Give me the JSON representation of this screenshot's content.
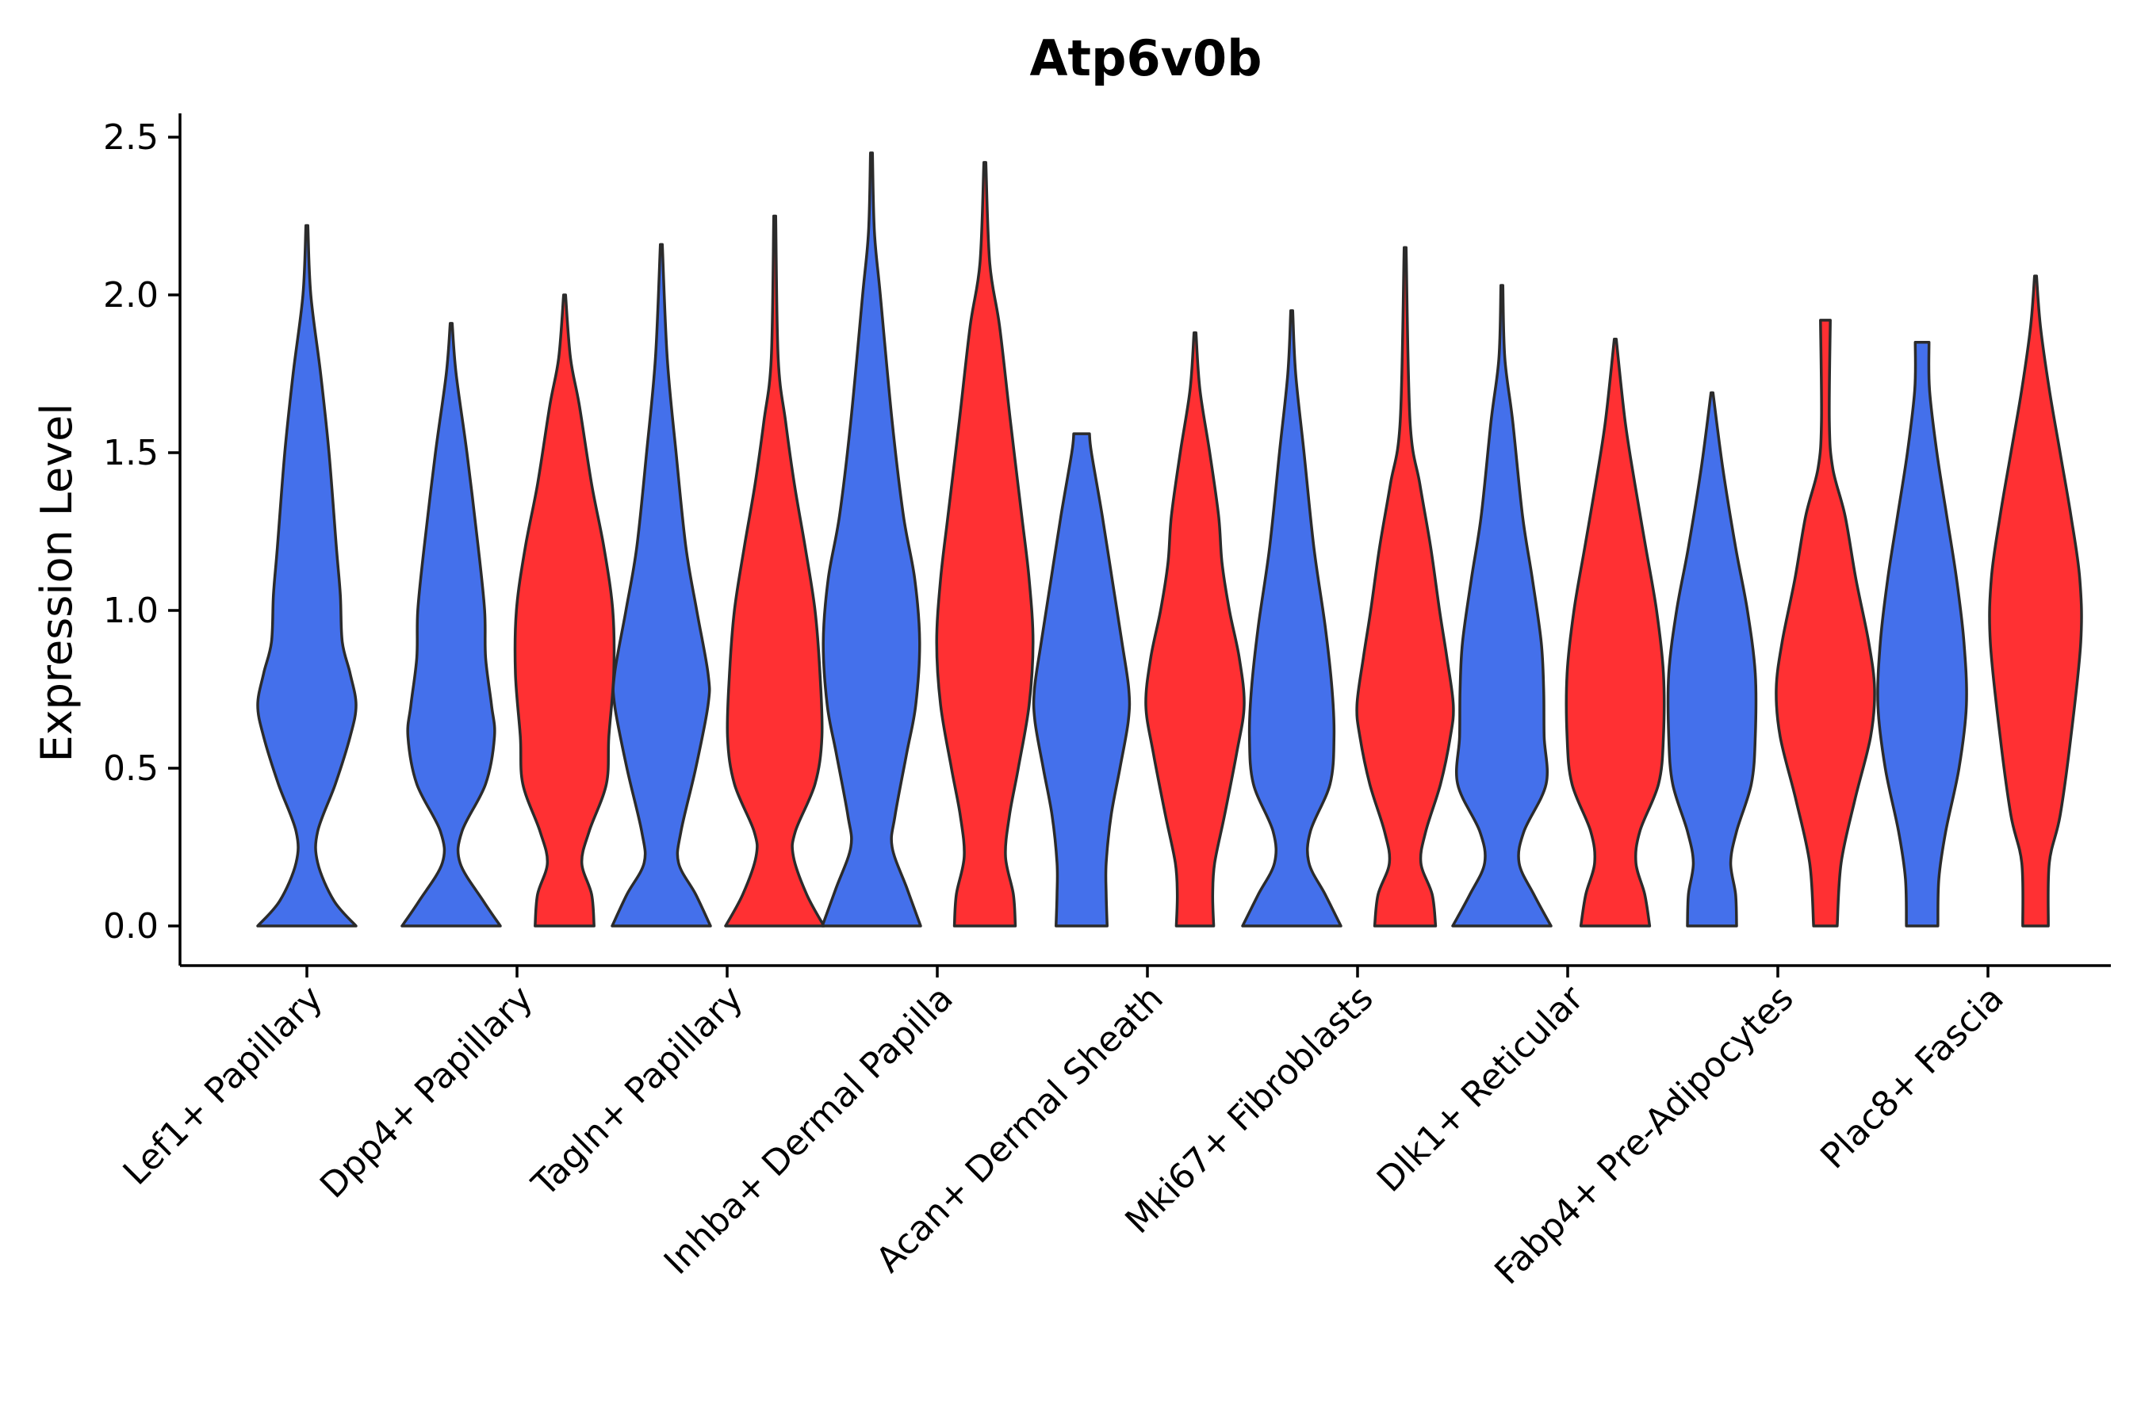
{
  "chart_data": {
    "type": "violin",
    "title": "Atp6v0b",
    "xlabel": "",
    "ylabel": "Expression Level",
    "ylim": [
      -0.12,
      2.58
    ],
    "yticks": [
      0.0,
      0.5,
      1.0,
      1.5,
      2.0,
      2.5
    ],
    "ytick_labels": [
      "0.0",
      "0.5",
      "1.0",
      "1.5",
      "2.0",
      "2.5"
    ],
    "colors": {
      "group1": "#4470EB",
      "group2": "#FF3033"
    },
    "categories": [
      "Lef1+ Papillary",
      "Dpp4+ Papillary",
      "Tagln+ Papillary",
      "Inhba+ Dermal Papilla",
      "Acan+ Dermal Sheath",
      "Mki67+ Fibroblasts",
      "Dlk1+ Reticular",
      "Fabp4+ Pre-Adipocytes",
      "Plac8+ Fascia"
    ],
    "violins": [
      {
        "category": "Lef1+ Papillary",
        "group": "group1",
        "color": "#4470EB",
        "max": 2.22,
        "profile": [
          [
            0.0,
            1.0
          ],
          [
            0.08,
            0.55
          ],
          [
            0.2,
            0.22
          ],
          [
            0.3,
            0.22
          ],
          [
            0.45,
            0.58
          ],
          [
            0.6,
            0.88
          ],
          [
            0.7,
            1.0
          ],
          [
            0.8,
            0.88
          ],
          [
            0.9,
            0.72
          ],
          [
            1.05,
            0.68
          ],
          [
            1.2,
            0.6
          ],
          [
            1.5,
            0.45
          ],
          [
            1.75,
            0.28
          ],
          [
            2.0,
            0.08
          ],
          [
            2.22,
            0.02
          ]
        ]
      },
      {
        "category": "Dpp4+ Papillary",
        "group": "group1",
        "color": "#4470EB",
        "max": 1.91,
        "profile": [
          [
            0.0,
            1.0
          ],
          [
            0.08,
            0.65
          ],
          [
            0.2,
            0.18
          ],
          [
            0.3,
            0.22
          ],
          [
            0.45,
            0.7
          ],
          [
            0.6,
            0.88
          ],
          [
            0.7,
            0.82
          ],
          [
            0.85,
            0.7
          ],
          [
            1.0,
            0.68
          ],
          [
            1.2,
            0.55
          ],
          [
            1.5,
            0.32
          ],
          [
            1.75,
            0.1
          ],
          [
            1.91,
            0.02
          ]
        ]
      },
      {
        "category": "Dpp4+ Papillary",
        "group": "group2",
        "color": "#FF3033",
        "max": 2.0,
        "profile": [
          [
            0.0,
            0.6
          ],
          [
            0.1,
            0.55
          ],
          [
            0.2,
            0.35
          ],
          [
            0.3,
            0.5
          ],
          [
            0.45,
            0.85
          ],
          [
            0.6,
            0.9
          ],
          [
            0.8,
            1.0
          ],
          [
            1.0,
            0.98
          ],
          [
            1.2,
            0.8
          ],
          [
            1.4,
            0.55
          ],
          [
            1.65,
            0.3
          ],
          [
            1.8,
            0.12
          ],
          [
            2.0,
            0.02
          ]
        ]
      },
      {
        "category": "Tagln+ Papillary",
        "group": "group1",
        "color": "#4470EB",
        "max": 2.16,
        "profile": [
          [
            0.0,
            1.0
          ],
          [
            0.1,
            0.7
          ],
          [
            0.2,
            0.35
          ],
          [
            0.3,
            0.4
          ],
          [
            0.5,
            0.7
          ],
          [
            0.7,
            0.95
          ],
          [
            0.8,
            0.95
          ],
          [
            1.0,
            0.72
          ],
          [
            1.2,
            0.5
          ],
          [
            1.5,
            0.3
          ],
          [
            1.8,
            0.12
          ],
          [
            2.16,
            0.02
          ]
        ]
      },
      {
        "category": "Tagln+ Papillary",
        "group": "group2",
        "color": "#FF3033",
        "max": 2.25,
        "profile": [
          [
            0.0,
            1.0
          ],
          [
            0.1,
            0.65
          ],
          [
            0.22,
            0.38
          ],
          [
            0.3,
            0.42
          ],
          [
            0.45,
            0.82
          ],
          [
            0.6,
            0.96
          ],
          [
            0.8,
            0.92
          ],
          [
            1.0,
            0.82
          ],
          [
            1.2,
            0.62
          ],
          [
            1.4,
            0.4
          ],
          [
            1.6,
            0.22
          ],
          [
            1.8,
            0.07
          ],
          [
            2.25,
            0.02
          ]
        ]
      },
      {
        "category": "Inhba+ Dermal Papilla",
        "group": "group1",
        "color": "#4470EB",
        "max": 2.45,
        "profile": [
          [
            0.0,
            1.0
          ],
          [
            0.12,
            0.72
          ],
          [
            0.25,
            0.42
          ],
          [
            0.35,
            0.48
          ],
          [
            0.55,
            0.72
          ],
          [
            0.7,
            0.9
          ],
          [
            0.9,
            0.98
          ],
          [
            1.1,
            0.88
          ],
          [
            1.3,
            0.65
          ],
          [
            1.6,
            0.42
          ],
          [
            2.0,
            0.18
          ],
          [
            2.2,
            0.06
          ],
          [
            2.45,
            0.02
          ]
        ]
      },
      {
        "category": "Inhba+ Dermal Papilla",
        "group": "group2",
        "color": "#FF3033",
        "max": 2.42,
        "profile": [
          [
            0.0,
            0.62
          ],
          [
            0.1,
            0.58
          ],
          [
            0.22,
            0.42
          ],
          [
            0.35,
            0.5
          ],
          [
            0.5,
            0.68
          ],
          [
            0.7,
            0.9
          ],
          [
            0.9,
            0.98
          ],
          [
            1.1,
            0.9
          ],
          [
            1.3,
            0.75
          ],
          [
            1.6,
            0.52
          ],
          [
            1.9,
            0.3
          ],
          [
            2.1,
            0.1
          ],
          [
            2.42,
            0.02
          ]
        ]
      },
      {
        "category": "Acan+ Dermal Sheath",
        "group": "group1",
        "color": "#4470EB",
        "max": 1.56,
        "profile": [
          [
            0.0,
            0.52
          ],
          [
            0.1,
            0.5
          ],
          [
            0.2,
            0.5
          ],
          [
            0.35,
            0.6
          ],
          [
            0.5,
            0.78
          ],
          [
            0.65,
            0.95
          ],
          [
            0.75,
            0.96
          ],
          [
            0.9,
            0.82
          ],
          [
            1.1,
            0.62
          ],
          [
            1.3,
            0.42
          ],
          [
            1.5,
            0.2
          ],
          [
            1.56,
            0.16
          ]
        ]
      },
      {
        "category": "Acan+ Dermal Sheath",
        "group": "group2",
        "color": "#FF3033",
        "max": 1.88,
        "profile": [
          [
            0.0,
            0.38
          ],
          [
            0.1,
            0.36
          ],
          [
            0.2,
            0.4
          ],
          [
            0.35,
            0.6
          ],
          [
            0.55,
            0.85
          ],
          [
            0.7,
            1.0
          ],
          [
            0.85,
            0.9
          ],
          [
            1.0,
            0.7
          ],
          [
            1.15,
            0.55
          ],
          [
            1.3,
            0.48
          ],
          [
            1.5,
            0.3
          ],
          [
            1.7,
            0.1
          ],
          [
            1.88,
            0.02
          ]
        ]
      },
      {
        "category": "Mki67+ Fibroblasts",
        "group": "group1",
        "color": "#4470EB",
        "max": 1.95,
        "profile": [
          [
            0.0,
            1.0
          ],
          [
            0.1,
            0.68
          ],
          [
            0.2,
            0.35
          ],
          [
            0.3,
            0.38
          ],
          [
            0.45,
            0.78
          ],
          [
            0.6,
            0.86
          ],
          [
            0.75,
            0.82
          ],
          [
            0.95,
            0.68
          ],
          [
            1.2,
            0.45
          ],
          [
            1.5,
            0.25
          ],
          [
            1.75,
            0.08
          ],
          [
            1.95,
            0.02
          ]
        ]
      },
      {
        "category": "Mki67+ Fibroblasts",
        "group": "group2",
        "color": "#FF3033",
        "max": 2.15,
        "profile": [
          [
            0.0,
            0.62
          ],
          [
            0.1,
            0.55
          ],
          [
            0.2,
            0.32
          ],
          [
            0.3,
            0.42
          ],
          [
            0.45,
            0.72
          ],
          [
            0.6,
            0.92
          ],
          [
            0.7,
            0.98
          ],
          [
            0.85,
            0.85
          ],
          [
            1.0,
            0.7
          ],
          [
            1.2,
            0.52
          ],
          [
            1.4,
            0.3
          ],
          [
            1.6,
            0.1
          ],
          [
            2.15,
            0.02
          ]
        ]
      },
      {
        "category": "Dlk1+ Reticular",
        "group": "group1",
        "color": "#4470EB",
        "max": 2.03,
        "profile": [
          [
            0.0,
            1.0
          ],
          [
            0.1,
            0.65
          ],
          [
            0.2,
            0.35
          ],
          [
            0.3,
            0.45
          ],
          [
            0.45,
            0.9
          ],
          [
            0.6,
            0.86
          ],
          [
            0.75,
            0.85
          ],
          [
            0.9,
            0.8
          ],
          [
            1.1,
            0.62
          ],
          [
            1.3,
            0.42
          ],
          [
            1.6,
            0.22
          ],
          [
            1.8,
            0.06
          ],
          [
            2.03,
            0.02
          ]
        ]
      },
      {
        "category": "Dlk1+ Reticular",
        "group": "group2",
        "color": "#FF3033",
        "max": 1.86,
        "profile": [
          [
            0.0,
            0.7
          ],
          [
            0.1,
            0.6
          ],
          [
            0.2,
            0.42
          ],
          [
            0.3,
            0.5
          ],
          [
            0.45,
            0.88
          ],
          [
            0.6,
            0.98
          ],
          [
            0.8,
            0.98
          ],
          [
            1.0,
            0.84
          ],
          [
            1.2,
            0.62
          ],
          [
            1.4,
            0.4
          ],
          [
            1.6,
            0.2
          ],
          [
            1.86,
            0.02
          ]
        ]
      },
      {
        "category": "Fabp4+ Pre-Adipocytes",
        "group": "group1",
        "color": "#4470EB",
        "max": 1.69,
        "profile": [
          [
            0.0,
            0.5
          ],
          [
            0.1,
            0.48
          ],
          [
            0.2,
            0.38
          ],
          [
            0.3,
            0.5
          ],
          [
            0.45,
            0.8
          ],
          [
            0.6,
            0.88
          ],
          [
            0.8,
            0.88
          ],
          [
            1.0,
            0.72
          ],
          [
            1.2,
            0.48
          ],
          [
            1.45,
            0.22
          ],
          [
            1.69,
            0.02
          ]
        ]
      },
      {
        "category": "Fabp4+ Pre-Adipocytes",
        "group": "group2",
        "color": "#FF3033",
        "max": 1.92,
        "profile": [
          [
            0.0,
            0.24
          ],
          [
            0.2,
            0.32
          ],
          [
            0.4,
            0.6
          ],
          [
            0.6,
            0.92
          ],
          [
            0.75,
            1.0
          ],
          [
            0.9,
            0.88
          ],
          [
            1.1,
            0.62
          ],
          [
            1.3,
            0.4
          ],
          [
            1.45,
            0.15
          ],
          [
            1.6,
            0.08
          ],
          [
            1.92,
            0.1
          ]
        ]
      },
      {
        "category": "Plac8+ Fascia",
        "group": "group1",
        "color": "#4470EB",
        "max": 1.85,
        "profile": [
          [
            0.0,
            0.32
          ],
          [
            0.15,
            0.34
          ],
          [
            0.3,
            0.48
          ],
          [
            0.5,
            0.75
          ],
          [
            0.7,
            0.9
          ],
          [
            0.9,
            0.85
          ],
          [
            1.1,
            0.7
          ],
          [
            1.3,
            0.5
          ],
          [
            1.5,
            0.3
          ],
          [
            1.7,
            0.15
          ],
          [
            1.85,
            0.14
          ]
        ]
      },
      {
        "category": "Plac8+ Fascia",
        "group": "group2",
        "color": "#FF3033",
        "max": 2.06,
        "profile": [
          [
            0.0,
            0.26
          ],
          [
            0.2,
            0.28
          ],
          [
            0.35,
            0.5
          ],
          [
            0.6,
            0.72
          ],
          [
            0.9,
            0.92
          ],
          [
            1.1,
            0.9
          ],
          [
            1.3,
            0.72
          ],
          [
            1.5,
            0.5
          ],
          [
            1.7,
            0.28
          ],
          [
            1.9,
            0.1
          ],
          [
            2.06,
            0.02
          ]
        ]
      }
    ]
  }
}
